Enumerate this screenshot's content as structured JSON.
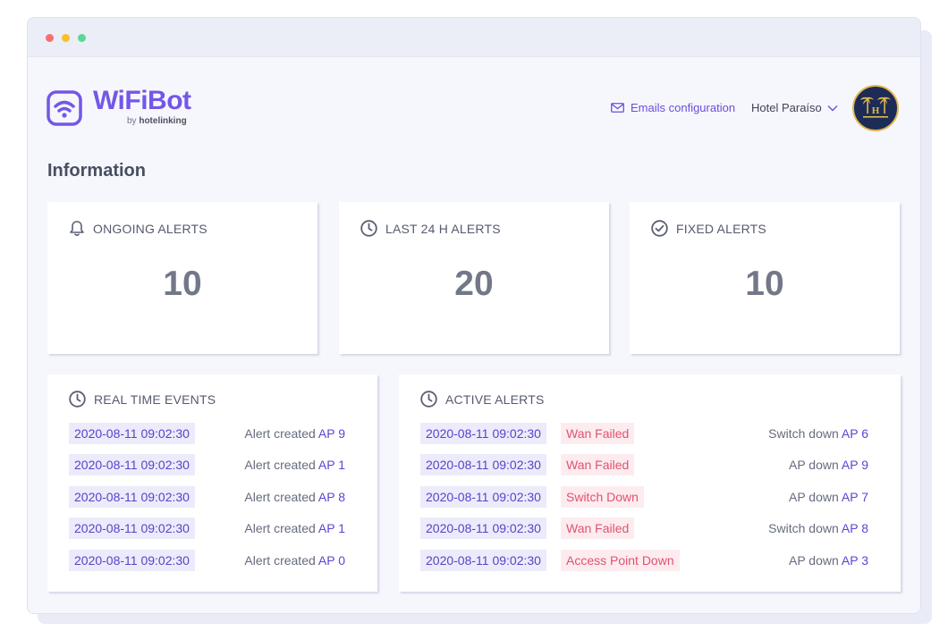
{
  "app": {
    "logo_name": "WiFiBot",
    "logo_by": "by",
    "logo_brand": "hotelinking",
    "brand_color": "#7457e6"
  },
  "header": {
    "emails_config_label": "Emails configuration",
    "emails_icon": "mail-icon",
    "hotel_name": "Hotel Paraíso",
    "hotel_dropdown_icon": "chevron-down-icon",
    "avatar_text": "H",
    "avatar_icon": "palm-trees-icon"
  },
  "page": {
    "title": "Information"
  },
  "stats": [
    {
      "label": "ONGOING ALERTS",
      "value": "10",
      "icon": "bell-icon"
    },
    {
      "label": "LAST 24 H ALERTS",
      "value": "20",
      "icon": "clock-icon"
    },
    {
      "label": "FIXED ALERTS",
      "value": "10",
      "icon": "check-circle-icon"
    }
  ],
  "real_time_events": {
    "title": "REAL TIME EVENTS",
    "icon": "clock-icon",
    "rows": [
      {
        "date": "2020-08-11 09:02:30",
        "text": "Alert created",
        "ap": "AP 9"
      },
      {
        "date": "2020-08-11 09:02:30",
        "text": "Alert created",
        "ap": "AP 1"
      },
      {
        "date": "2020-08-11 09:02:30",
        "text": "Alert created",
        "ap": "AP 8"
      },
      {
        "date": "2020-08-11 09:02:30",
        "text": "Alert created",
        "ap": "AP 1"
      },
      {
        "date": "2020-08-11 09:02:30",
        "text": "Alert created",
        "ap": "AP 0"
      }
    ]
  },
  "active_alerts": {
    "title": "ACTIVE ALERTS",
    "icon": "clock-icon",
    "rows": [
      {
        "date": "2020-08-11 09:02:30",
        "type": "Wan Failed",
        "text": "Switch down",
        "ap": "AP 6"
      },
      {
        "date": "2020-08-11 09:02:30",
        "type": "Wan Failed",
        "text": "AP down ",
        "ap": "AP 9"
      },
      {
        "date": "2020-08-11 09:02:30",
        "type": "Switch Down",
        "text": "AP down",
        "ap": "AP 7"
      },
      {
        "date": "2020-08-11 09:02:30",
        "type": "Wan Failed",
        "text": "Switch down",
        "ap": "AP 8"
      },
      {
        "date": "2020-08-11 09:02:30",
        "type": "Access Point Down",
        "text": "AP down",
        "ap": "AP 3"
      }
    ]
  },
  "colors": {
    "date_chip_bg": "#ecebfb",
    "date_chip_text": "#5743c9",
    "alert_chip_bg": "#fdecef",
    "alert_chip_text": "#e05270"
  }
}
